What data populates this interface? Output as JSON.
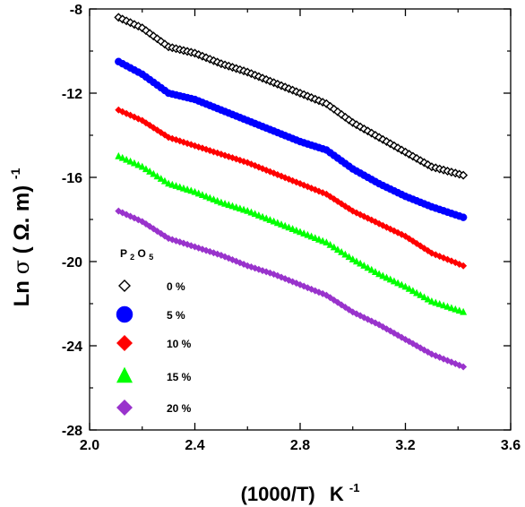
{
  "chart_data": {
    "type": "scatter",
    "xlabel": {
      "main": "(1000/T)",
      "unit": "K",
      "exponent": "-1"
    },
    "ylabel": {
      "prefix": "Ln",
      "sigma": "σ",
      "unit": "( Ω. m)",
      "exponent": "-1"
    },
    "xlim": [
      2.0,
      3.6
    ],
    "ylim": [
      -28,
      -8
    ],
    "x_ticks": [
      "2.0",
      "2.4",
      "2.8",
      "3.2",
      "3.6"
    ],
    "y_ticks": [
      "-8",
      "-12",
      "-16",
      "-20",
      "-24",
      "-28"
    ],
    "legend": {
      "title": {
        "base1": "P",
        "sub1": "2",
        "base2": " O",
        "sub2": "5"
      },
      "placement": "lower-left"
    },
    "series": [
      {
        "name": "0 %",
        "marker": "diamond-open",
        "color": "#000000",
        "points": [
          [
            2.11,
            -8.4
          ],
          [
            2.2,
            -8.9
          ],
          [
            2.3,
            -9.8
          ],
          [
            2.4,
            -10.1
          ],
          [
            2.5,
            -10.6
          ],
          [
            2.6,
            -11.0
          ],
          [
            2.7,
            -11.5
          ],
          [
            2.8,
            -12.0
          ],
          [
            2.9,
            -12.5
          ],
          [
            3.0,
            -13.4
          ],
          [
            3.1,
            -14.1
          ],
          [
            3.2,
            -14.8
          ],
          [
            3.3,
            -15.5
          ],
          [
            3.42,
            -15.9
          ]
        ]
      },
      {
        "name": "5 %",
        "marker": "circle",
        "color": "#0000ff",
        "points": [
          [
            2.11,
            -10.5
          ],
          [
            2.2,
            -11.1
          ],
          [
            2.3,
            -12.0
          ],
          [
            2.4,
            -12.3
          ],
          [
            2.5,
            -12.8
          ],
          [
            2.6,
            -13.3
          ],
          [
            2.7,
            -13.8
          ],
          [
            2.8,
            -14.3
          ],
          [
            2.9,
            -14.7
          ],
          [
            3.0,
            -15.6
          ],
          [
            3.1,
            -16.3
          ],
          [
            3.2,
            -16.9
          ],
          [
            3.3,
            -17.4
          ],
          [
            3.42,
            -17.9
          ]
        ]
      },
      {
        "name": "10 %",
        "marker": "diamond",
        "color": "#ff0000",
        "points": [
          [
            2.11,
            -12.8
          ],
          [
            2.2,
            -13.3
          ],
          [
            2.3,
            -14.1
          ],
          [
            2.4,
            -14.5
          ],
          [
            2.5,
            -14.9
          ],
          [
            2.6,
            -15.3
          ],
          [
            2.7,
            -15.8
          ],
          [
            2.8,
            -16.3
          ],
          [
            2.9,
            -16.8
          ],
          [
            3.0,
            -17.6
          ],
          [
            3.1,
            -18.2
          ],
          [
            3.2,
            -18.8
          ],
          [
            3.3,
            -19.6
          ],
          [
            3.42,
            -20.2
          ]
        ]
      },
      {
        "name": "15 %",
        "marker": "triangle",
        "color": "#00ff00",
        "points": [
          [
            2.11,
            -15.0
          ],
          [
            2.2,
            -15.5
          ],
          [
            2.3,
            -16.3
          ],
          [
            2.4,
            -16.7
          ],
          [
            2.5,
            -17.2
          ],
          [
            2.6,
            -17.6
          ],
          [
            2.7,
            -18.1
          ],
          [
            2.8,
            -18.6
          ],
          [
            2.9,
            -19.1
          ],
          [
            3.0,
            -19.9
          ],
          [
            3.1,
            -20.6
          ],
          [
            3.2,
            -21.2
          ],
          [
            3.3,
            -21.9
          ],
          [
            3.42,
            -22.4
          ]
        ]
      },
      {
        "name": "20 %",
        "marker": "diamond",
        "color": "#9933cc",
        "points": [
          [
            2.11,
            -17.6
          ],
          [
            2.2,
            -18.1
          ],
          [
            2.3,
            -18.9
          ],
          [
            2.4,
            -19.3
          ],
          [
            2.5,
            -19.7
          ],
          [
            2.6,
            -20.2
          ],
          [
            2.7,
            -20.6
          ],
          [
            2.8,
            -21.1
          ],
          [
            2.9,
            -21.6
          ],
          [
            3.0,
            -22.4
          ],
          [
            3.1,
            -23.0
          ],
          [
            3.2,
            -23.7
          ],
          [
            3.3,
            -24.4
          ],
          [
            3.42,
            -25.0
          ]
        ]
      }
    ]
  }
}
